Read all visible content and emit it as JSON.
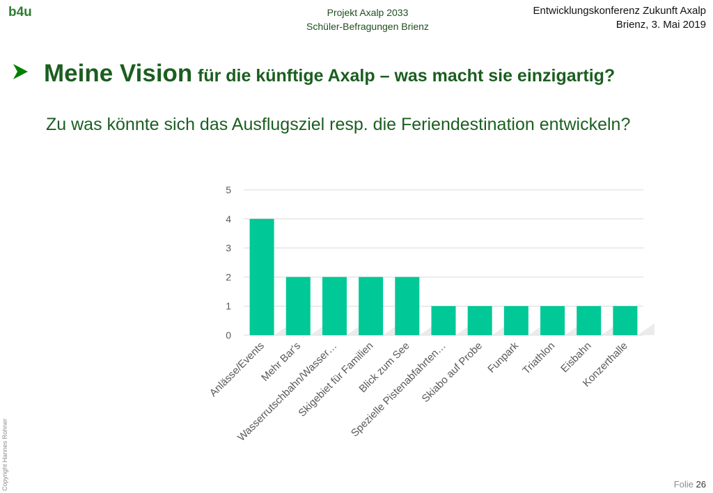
{
  "header": {
    "logo_text": "b4u",
    "project_line1": "Projekt Axalp 2033",
    "project_line2": "Schüler-Befragungen Brienz",
    "conference_line1": "Entwicklungskonferenz Zukunft Axalp",
    "conference_line2": "Brienz, 3. Mai 2019"
  },
  "slide": {
    "title_main": "Meine Vision",
    "title_rest": "für die künftige Axalp – was macht sie einzigartig?",
    "subtitle": "Zu was könnte sich das Ausflugsziel resp. die Feriendestination entwickeln?"
  },
  "chart_data": {
    "type": "bar",
    "categories": [
      "Anlässe/Events",
      "Mehr Bar's",
      "Wasserrutschbahn/Wasser…",
      "Skigebiet für Familien",
      "Blick zum See",
      "Spezielle Pistenabfahrten…",
      "Skiabo auf Probe",
      "Funpark",
      "Triathlon",
      "Eisbahn",
      "Konzerthalle"
    ],
    "values": [
      4,
      2,
      2,
      2,
      2,
      1,
      1,
      1,
      1,
      1,
      1
    ],
    "ylim": [
      0,
      5
    ],
    "yticks": [
      0,
      1,
      2,
      3,
      4,
      5
    ],
    "bar_color": "#00c896",
    "grid": true,
    "title": "",
    "xlabel": "",
    "ylabel": ""
  },
  "footer": {
    "copyright": "Copyright Hannes Rohner",
    "slide_label": "Folie",
    "slide_number": "26"
  },
  "colors": {
    "title_green": "#1b5e20",
    "logo_green": "#2e7d32",
    "bullet_green": "#008000"
  }
}
